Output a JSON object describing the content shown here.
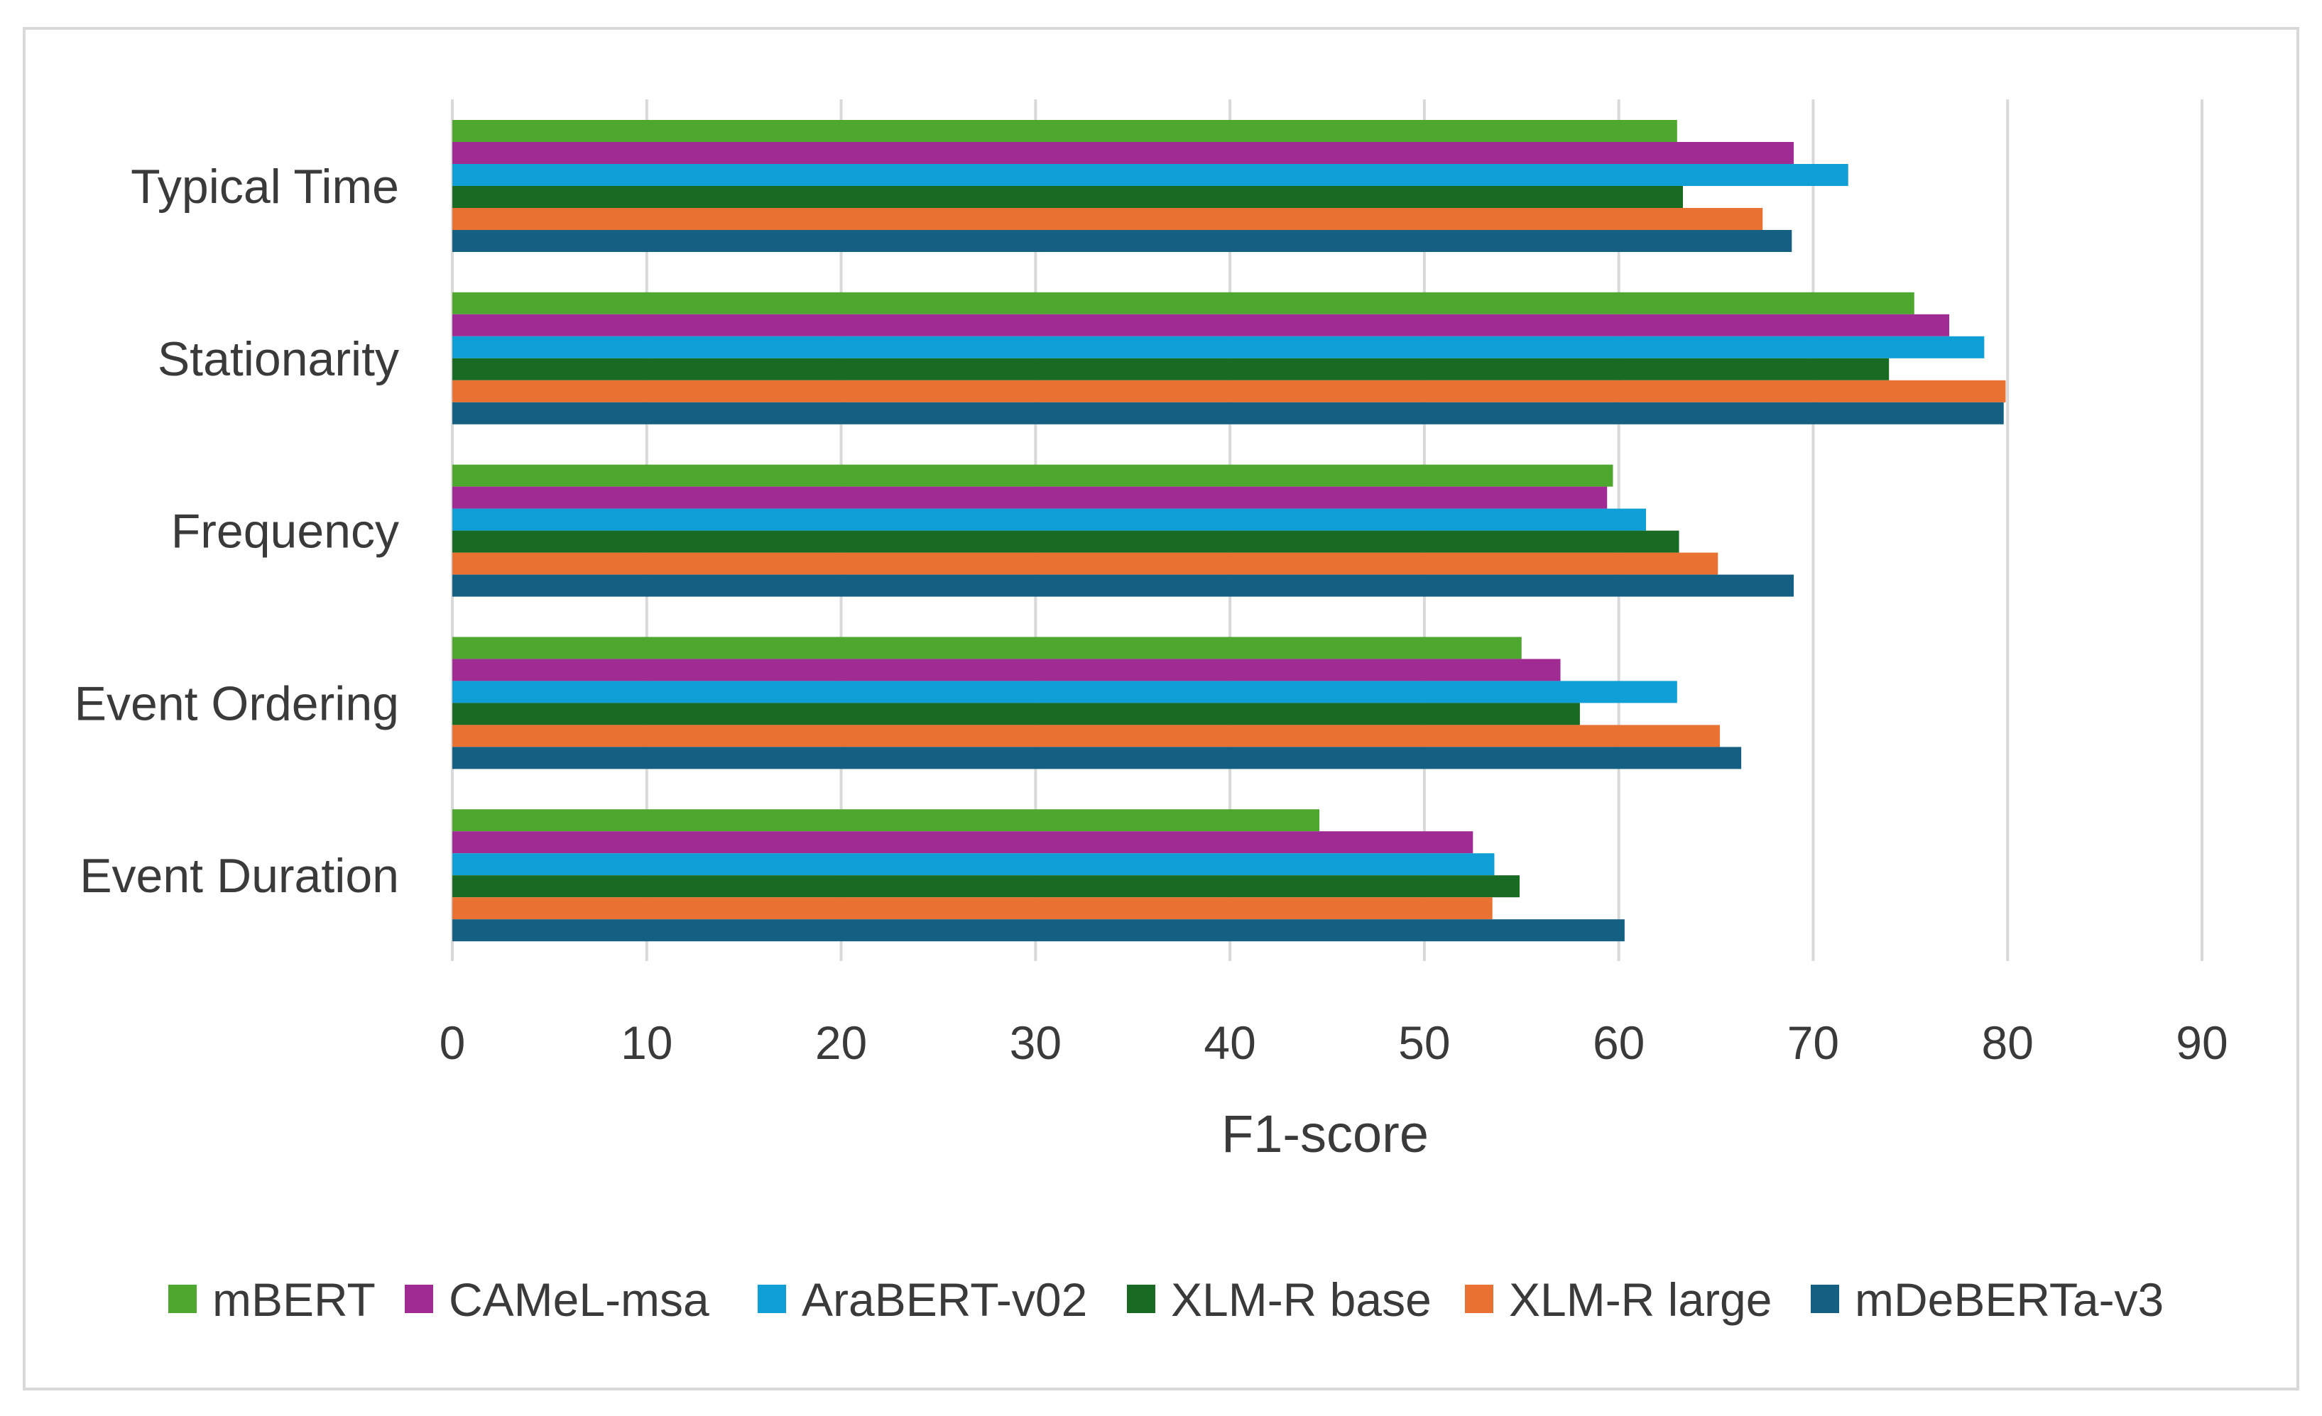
{
  "chart_data": {
    "type": "bar",
    "orientation": "horizontal",
    "title": "",
    "xlabel": "F1-score",
    "ylabel": "",
    "xlim": [
      0,
      90
    ],
    "xticks": [
      0,
      10,
      20,
      30,
      40,
      50,
      60,
      70,
      80,
      90
    ],
    "grid": "vertical",
    "legend_position": "bottom",
    "categories": [
      "Typical Time",
      "Stationarity",
      "Frequency",
      "Event Ordering",
      "Event Duration"
    ],
    "series": [
      {
        "name": "mBERT",
        "color": "#4ea72e",
        "values": [
          63.0,
          75.2,
          59.7,
          55.0,
          44.6
        ]
      },
      {
        "name": "CAMeL-msa",
        "color": "#a02b93",
        "values": [
          69.0,
          77.0,
          59.4,
          57.0,
          52.5
        ]
      },
      {
        "name": "AraBERT-v02",
        "color": "#0f9ed5",
        "values": [
          71.8,
          78.8,
          61.4,
          63.0,
          53.6
        ]
      },
      {
        "name": "XLM-R base",
        "color": "#196b24",
        "values": [
          63.3,
          73.9,
          63.1,
          58.0,
          54.9
        ]
      },
      {
        "name": "XLM-R large",
        "color": "#e97132",
        "values": [
          67.4,
          79.9,
          65.1,
          65.2,
          53.5
        ]
      },
      {
        "name": "mDeBERTa-v3",
        "color": "#156082",
        "values": [
          68.9,
          79.8,
          69.0,
          66.3,
          60.3
        ]
      }
    ]
  }
}
